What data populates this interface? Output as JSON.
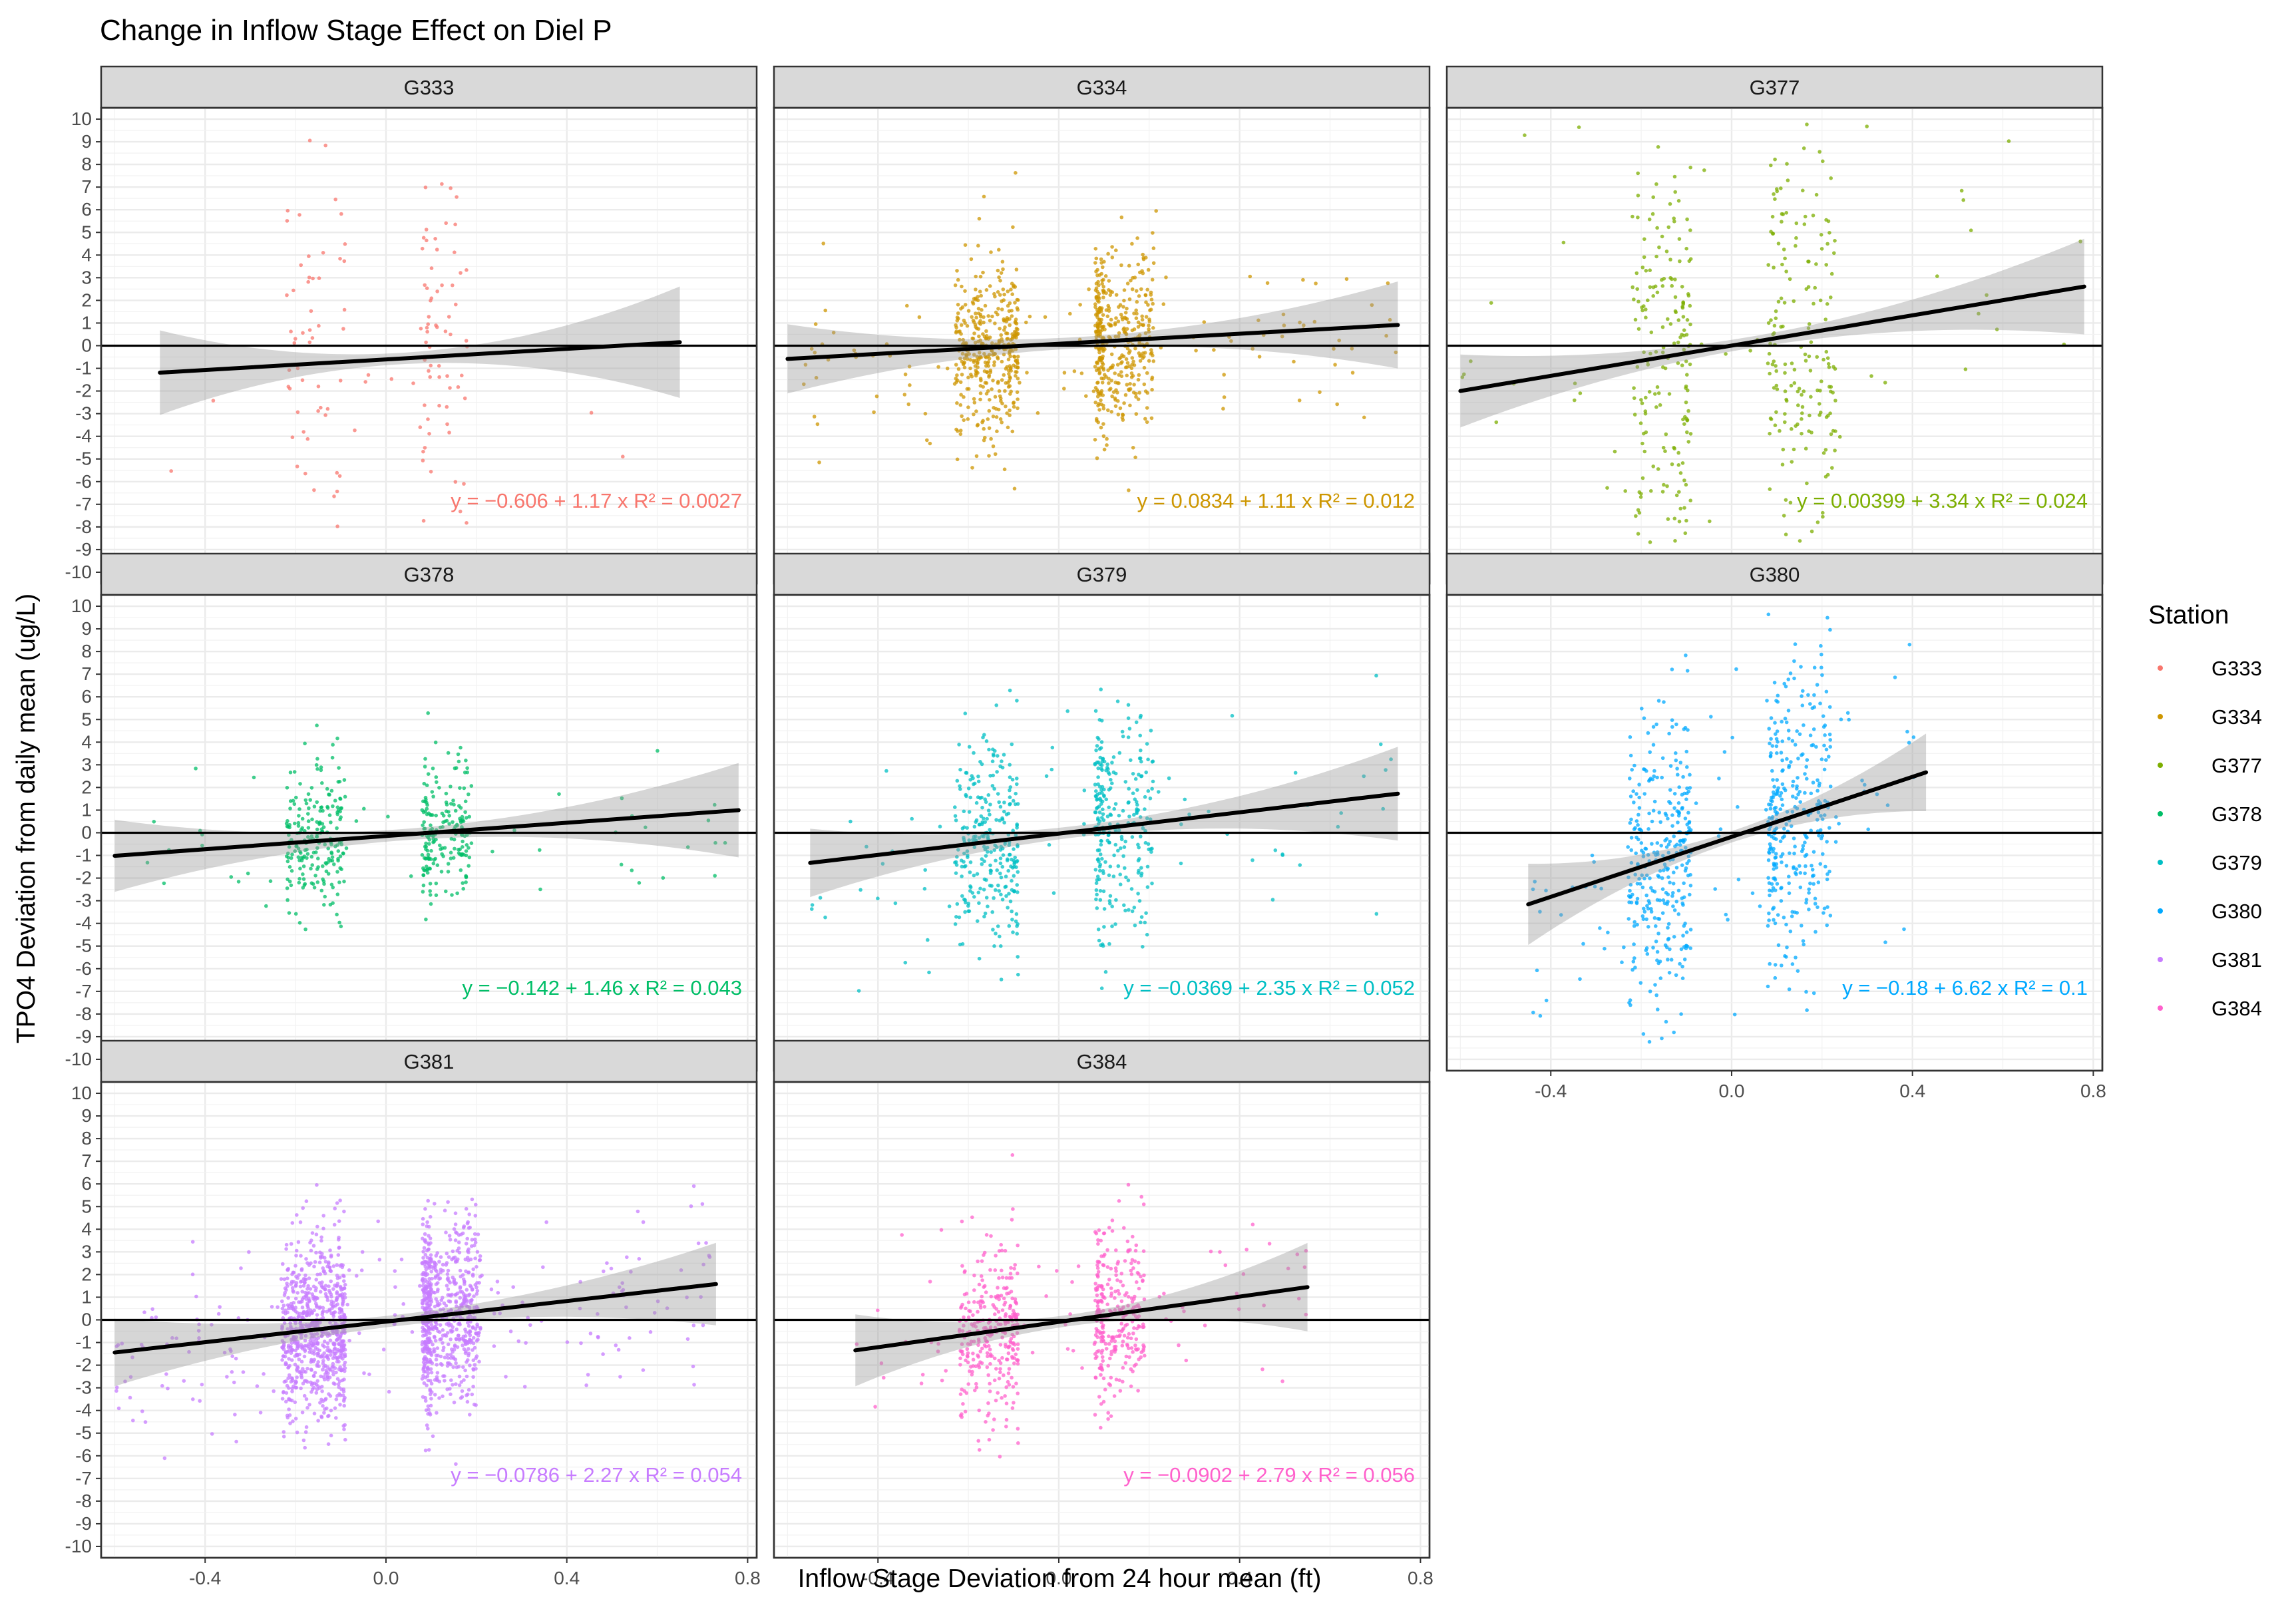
{
  "chart_data": {
    "type": "scatter",
    "title": "Change in Inflow Stage Effect on Diel P",
    "xlabel": "Inflow Stage Deviation from 24 hour mean (ft)",
    "ylabel": "TPO4 Deviation from daily mean (ug/L)",
    "xlim": [
      -0.63,
      0.82
    ],
    "ylim": [
      -10.5,
      10.5
    ],
    "x_ticks": [
      "-0.4",
      "0.0",
      "0.4",
      "0.8"
    ],
    "x_tick_values": [
      -0.4,
      0.0,
      0.4,
      0.8
    ],
    "y_ticks": [
      "10",
      "9",
      "8",
      "7",
      "6",
      "5",
      "4",
      "3",
      "2",
      "1",
      "0",
      "-1",
      "-2",
      "-3",
      "-4",
      "-5",
      "-6",
      "-7",
      "-8",
      "-9",
      "-10"
    ],
    "y_tick_values": [
      10,
      9,
      8,
      7,
      6,
      5,
      4,
      3,
      2,
      1,
      0,
      -1,
      -2,
      -3,
      -4,
      -5,
      -6,
      -7,
      -8,
      -9,
      -10
    ],
    "grid": true,
    "legend": {
      "title": "Station",
      "position": "right",
      "entries": [
        "G333",
        "G334",
        "G377",
        "G378",
        "G379",
        "G380",
        "G381",
        "G384"
      ]
    },
    "facets": [
      {
        "name": "G333",
        "color": "#F8766D",
        "intercept": -0.606,
        "slope": 1.17,
        "r2": "0.0027",
        "eq": "y = −0.606 + 1.17 x",
        "eq_r2": "R² = 0.0027",
        "x_range": [
          -0.5,
          0.65
        ],
        "n_points": 130,
        "clusters": [
          {
            "center": -0.15,
            "spread": 0.07
          },
          {
            "center": 0.1,
            "spread": 0.08
          }
        ],
        "y_sd": 4.0
      },
      {
        "name": "G334",
        "color": "#CD9600",
        "intercept": 0.0834,
        "slope": 1.11,
        "r2": "0.012",
        "eq": "y = 0.0834 + 1.11 x",
        "eq_r2": "R² = 0.012",
        "x_range": [
          -0.6,
          0.75
        ],
        "n_points": 900,
        "clusters": [
          {
            "center": -0.15,
            "spread": 0.08
          },
          {
            "center": 0.12,
            "spread": 0.09
          }
        ],
        "y_sd": 2.0
      },
      {
        "name": "G377",
        "color": "#7CAE00",
        "intercept": 0.00399,
        "slope": 3.34,
        "r2": "0.024",
        "eq": "y = 0.00399 + 3.34 x",
        "eq_r2": "R² = 0.024",
        "x_range": [
          -0.6,
          0.78
        ],
        "n_points": 400,
        "clusters": [
          {
            "center": -0.15,
            "spread": 0.07
          },
          {
            "center": 0.15,
            "spread": 0.08
          }
        ],
        "y_sd": 4.5
      },
      {
        "name": "G378",
        "color": "#00BE67",
        "intercept": -0.142,
        "slope": 1.46,
        "r2": "0.043",
        "eq": "y = −0.142 + 1.46 x",
        "eq_r2": "R² = 0.043",
        "x_range": [
          -0.6,
          0.78
        ],
        "n_points": 450,
        "clusters": [
          {
            "center": -0.15,
            "spread": 0.07
          },
          {
            "center": 0.12,
            "spread": 0.07
          }
        ],
        "y_sd": 1.6
      },
      {
        "name": "G379",
        "color": "#00BFC4",
        "intercept": -0.0369,
        "slope": 2.35,
        "r2": "0.052",
        "eq": "y = −0.0369 + 2.35 x",
        "eq_r2": "R² = 0.052",
        "x_range": [
          -0.55,
          0.75
        ],
        "n_points": 600,
        "clusters": [
          {
            "center": -0.15,
            "spread": 0.08
          },
          {
            "center": 0.12,
            "spread": 0.09
          }
        ],
        "y_sd": 2.4
      },
      {
        "name": "G380",
        "color": "#00A9FF",
        "intercept": -0.18,
        "slope": 6.62,
        "r2": "0.1",
        "eq": "y = −0.18 + 6.62 x",
        "eq_r2": "R² = 0.1",
        "x_range": [
          -0.45,
          0.43
        ],
        "n_points": 700,
        "clusters": [
          {
            "center": -0.15,
            "spread": 0.08
          },
          {
            "center": 0.14,
            "spread": 0.08
          }
        ],
        "y_sd": 3.3
      },
      {
        "name": "G381",
        "color": "#C77CFF",
        "intercept": -0.0786,
        "slope": 2.27,
        "r2": "0.054",
        "eq": "y = −0.0786 + 2.27 x",
        "eq_r2": "R² = 0.054",
        "x_range": [
          -0.6,
          0.73
        ],
        "n_points": 1600,
        "clusters": [
          {
            "center": -0.15,
            "spread": 0.08
          },
          {
            "center": 0.12,
            "spread": 0.09
          }
        ],
        "y_sd": 2.0
      },
      {
        "name": "G384",
        "color": "#FF61CC",
        "intercept": -0.0902,
        "slope": 2.79,
        "r2": "0.056",
        "eq": "y = −0.0902 + 2.79 x",
        "eq_r2": "R² = 0.056",
        "x_range": [
          -0.45,
          0.55
        ],
        "n_points": 650,
        "clusters": [
          {
            "center": -0.15,
            "spread": 0.07
          },
          {
            "center": 0.12,
            "spread": 0.07
          }
        ],
        "y_sd": 2.0
      }
    ]
  }
}
